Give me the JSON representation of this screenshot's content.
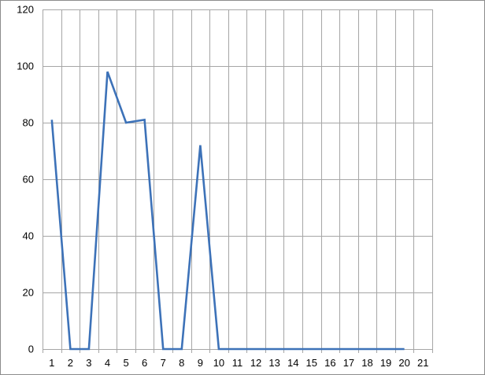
{
  "chart_data": {
    "type": "line",
    "categories": [
      "1",
      "2",
      "3",
      "4",
      "5",
      "6",
      "7",
      "8",
      "9",
      "10",
      "11",
      "12",
      "13",
      "14",
      "15",
      "16",
      "17",
      "18",
      "19",
      "20",
      "21"
    ],
    "series": [
      {
        "values": [
          81,
          0,
          0,
          98,
          80,
          81,
          0,
          0,
          72,
          0,
          0,
          0,
          0,
          0,
          0,
          0,
          0,
          0,
          0,
          0,
          null
        ],
        "color": "#3d72b8"
      }
    ],
    "yticks": [
      "0",
      "20",
      "40",
      "60",
      "80",
      "100",
      "120"
    ],
    "ylim": [
      0,
      120
    ],
    "grid": true,
    "title": "",
    "xlabel": "",
    "ylabel": ""
  }
}
